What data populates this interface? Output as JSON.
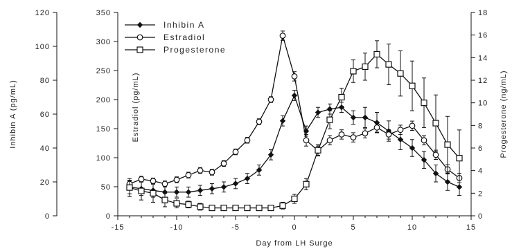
{
  "chart_data": {
    "type": "line",
    "xlabel": "Day from LH Surge",
    "ylabel_left_outer": "Inhibin A (pg/mL)",
    "ylabel_left_inner": "Estradiol (pg/mL)",
    "ylabel_right": "Progesterone (ng/mL)",
    "xlim": [
      -15,
      15
    ],
    "x_ticks": [
      "-15",
      "-10",
      "-5",
      "0",
      "5",
      "10",
      "15"
    ],
    "axes": {
      "inhibin": {
        "lim": [
          0,
          120
        ],
        "ticks": [
          "0",
          "20",
          "40",
          "60",
          "80",
          "100",
          "120"
        ]
      },
      "estradiol": {
        "lim": [
          0,
          350
        ],
        "ticks": [
          "0",
          "50",
          "100",
          "150",
          "200",
          "250",
          "300",
          "350"
        ]
      },
      "progesterone": {
        "lim": [
          0,
          18
        ],
        "ticks": [
          "0",
          "2",
          "4",
          "6",
          "8",
          "10",
          "12",
          "14",
          "16",
          "18"
        ]
      }
    },
    "legend_position": "top-left",
    "grid": false,
    "series": [
      {
        "name": "Inhibin A",
        "axis": "inhibin",
        "marker": "filled-diamond",
        "x": [
          -14,
          -13,
          -12,
          -11,
          -10,
          -9,
          -8,
          -7,
          -6,
          -5,
          -4,
          -3,
          -2,
          -1,
          0,
          1,
          2,
          3,
          4,
          5,
          6,
          7,
          8,
          9,
          10,
          11,
          12,
          13,
          14
        ],
        "y": [
          17,
          16,
          15,
          14,
          14,
          14,
          15,
          16,
          17,
          19,
          22,
          27,
          36,
          56,
          71,
          50,
          61,
          63,
          64,
          58,
          58,
          55,
          50,
          45,
          40,
          33,
          25,
          20,
          17
        ],
        "err": [
          4,
          4,
          4,
          3,
          3,
          3,
          3,
          3,
          3,
          3,
          3,
          3,
          3,
          3,
          3,
          3,
          3,
          3,
          3,
          4,
          6,
          6,
          6,
          6,
          5,
          5,
          5,
          5,
          5
        ]
      },
      {
        "name": "Estradiol",
        "axis": "estradiol",
        "marker": "open-circle",
        "x": [
          -14,
          -13,
          -12,
          -11,
          -10,
          -9,
          -8,
          -7,
          -6,
          -5,
          -4,
          -3,
          -2,
          -1,
          0,
          1,
          2,
          3,
          4,
          5,
          6,
          7,
          8,
          9,
          10,
          11,
          12,
          13,
          14
        ],
        "y": [
          55,
          63,
          60,
          55,
          62,
          70,
          78,
          75,
          90,
          110,
          130,
          162,
          200,
          310,
          240,
          130,
          112,
          130,
          140,
          135,
          142,
          152,
          140,
          148,
          155,
          130,
          105,
          80,
          65
        ],
        "err": [
          5,
          5,
          5,
          5,
          5,
          5,
          5,
          5,
          5,
          5,
          5,
          5,
          5,
          8,
          8,
          10,
          8,
          8,
          8,
          8,
          8,
          8,
          8,
          8,
          8,
          8,
          8,
          8,
          8
        ]
      },
      {
        "name": "Progesterone",
        "axis": "progesterone",
        "marker": "open-square",
        "x": [
          -14,
          -13,
          -12,
          -11,
          -10,
          -9,
          -8,
          -7,
          -6,
          -5,
          -4,
          -3,
          -2,
          -1,
          0,
          1,
          2,
          3,
          4,
          5,
          6,
          7,
          8,
          9,
          10,
          11,
          12,
          13,
          14
        ],
        "y": [
          2.5,
          2.2,
          2.0,
          1.4,
          1.1,
          1.0,
          0.8,
          0.7,
          0.7,
          0.7,
          0.7,
          0.7,
          0.7,
          0.9,
          1.5,
          2.8,
          5.8,
          8.5,
          10.5,
          12.8,
          13.2,
          14.3,
          13.4,
          12.6,
          11.5,
          10.0,
          8.2,
          6.3,
          5.1
        ],
        "err": [
          0.8,
          0.8,
          0.8,
          0.6,
          0.4,
          0.3,
          0.3,
          0.2,
          0.2,
          0.2,
          0.2,
          0.2,
          0.2,
          0.3,
          0.4,
          0.5,
          0.5,
          0.8,
          0.8,
          1.0,
          1.2,
          1.2,
          1.8,
          2.0,
          2.2,
          2.2,
          2.5,
          2.5,
          2.5
        ]
      }
    ]
  }
}
